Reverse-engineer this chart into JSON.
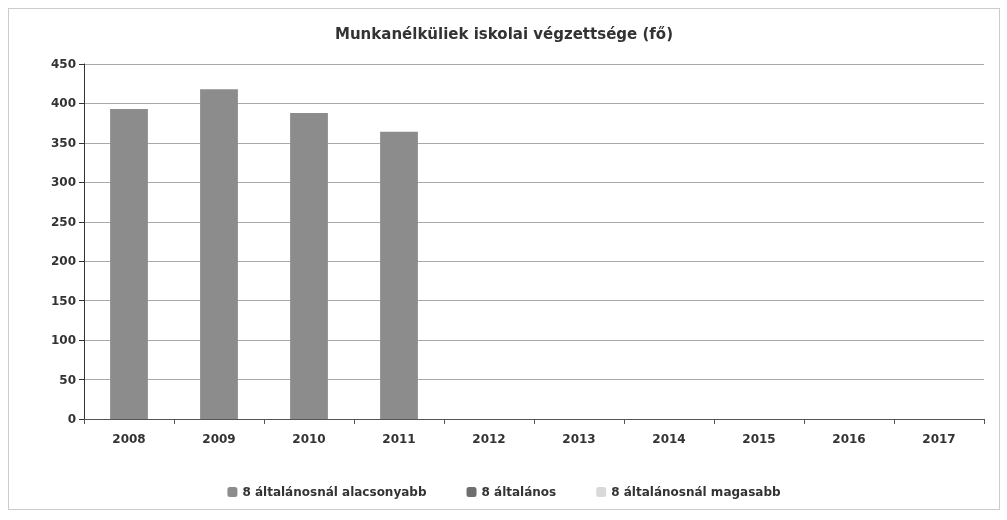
{
  "chart_data": {
    "type": "bar",
    "title": "Munkanélküliek iskolai végzettsége (fő)",
    "categories": [
      "2008",
      "2009",
      "2010",
      "2011",
      "2012",
      "2013",
      "2014",
      "2015",
      "2016",
      "2017"
    ],
    "series": [
      {
        "name": "8 általánosnál alacsonyabb",
        "color": "#8c8c8c",
        "values": [
          393,
          418,
          388,
          364,
          null,
          null,
          null,
          null,
          null,
          null
        ]
      },
      {
        "name": "8 általános",
        "color": "#6e6e6e",
        "values": [
          null,
          null,
          null,
          null,
          null,
          null,
          null,
          null,
          null,
          null
        ]
      },
      {
        "name": "8 általánosnál magasabb",
        "color": "#d9d9d9",
        "values": [
          null,
          null,
          null,
          null,
          null,
          null,
          null,
          null,
          null,
          null
        ]
      }
    ],
    "ylim": [
      0,
      450
    ],
    "yticks": [
      0,
      50,
      100,
      150,
      200,
      250,
      300,
      350,
      400,
      450
    ],
    "grid": "y",
    "legend": "bottom"
  }
}
